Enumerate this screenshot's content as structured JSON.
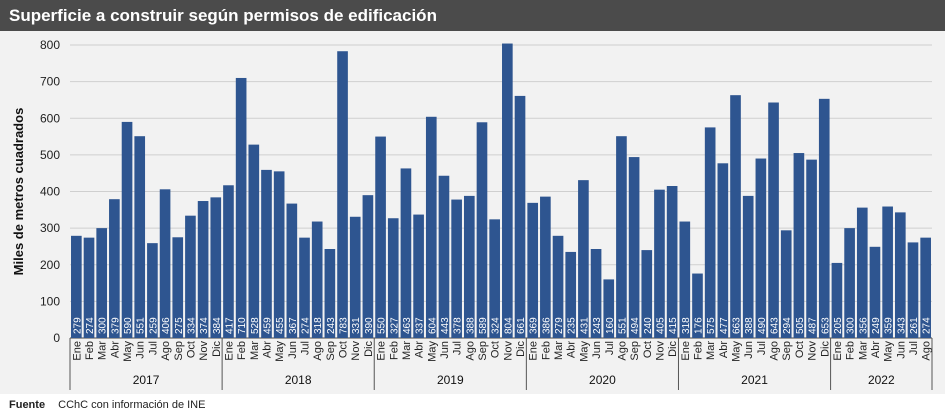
{
  "title": "Superficie a construir según permisos de edificación",
  "source": {
    "label": "Fuente",
    "text": "CChC con información de INE"
  },
  "colors": {
    "bar": "#2e5590",
    "title_bg": "#4b4b4b",
    "plot_bg": "#f2f2f2",
    "grid": "#cfcfcf",
    "value_label": "#ffffff"
  },
  "chart_data": {
    "type": "bar",
    "title": "Superficie a construir según permisos de edificación",
    "ylabel": "Miles de metros cuadrados",
    "xlabel": "",
    "ylim": [
      0,
      800
    ],
    "yticks": [
      0,
      100,
      200,
      300,
      400,
      500,
      600,
      700,
      800
    ],
    "grid": true,
    "years": [
      {
        "label": "2017",
        "months": [
          "Ene",
          "Feb",
          "Mar",
          "Abr",
          "May",
          "Jun",
          "Jul",
          "Ago",
          "Sep",
          "Oct",
          "Nov",
          "Dic"
        ],
        "values": [
          279,
          274,
          300,
          379,
          590,
          551,
          259,
          406,
          275,
          334,
          374,
          384
        ]
      },
      {
        "label": "2018",
        "months": [
          "Ene",
          "Feb",
          "Mar",
          "Abr",
          "May",
          "Jun",
          "Jul",
          "Ago",
          "Sep",
          "Oct",
          "Nov",
          "Dic"
        ],
        "values": [
          417,
          710,
          528,
          459,
          455,
          367,
          274,
          318,
          243,
          783,
          331,
          390
        ]
      },
      {
        "label": "2019",
        "months": [
          "Ene",
          "Feb",
          "Mar",
          "Abr",
          "May",
          "Jun",
          "Jul",
          "Ago",
          "Sep",
          "Oct",
          "Nov",
          "Dic"
        ],
        "values": [
          550,
          327,
          463,
          337,
          604,
          443,
          378,
          388,
          589,
          324,
          804,
          661
        ]
      },
      {
        "label": "2020",
        "months": [
          "Ene",
          "Feb",
          "Mar",
          "Abr",
          "May",
          "Jun",
          "Jul",
          "Ago",
          "Sep",
          "Oct",
          "Nov",
          "Dic"
        ],
        "values": [
          369,
          386,
          279,
          235,
          431,
          243,
          160,
          551,
          494,
          240,
          405,
          415
        ]
      },
      {
        "label": "2021",
        "months": [
          "Ene",
          "Feb",
          "Mar",
          "Abr",
          "May",
          "Jun",
          "Jul",
          "Ago",
          "Sep",
          "Oct",
          "Nov",
          "Dic"
        ],
        "values": [
          318,
          176,
          575,
          477,
          663,
          388,
          490,
          643,
          294,
          505,
          487,
          653
        ]
      },
      {
        "label": "2022",
        "months": [
          "Ene",
          "Feb",
          "Mar",
          "Abr",
          "May",
          "Jun",
          "Jul",
          "Ago"
        ],
        "values": [
          205,
          300,
          356,
          249,
          359,
          343,
          261,
          274
        ]
      }
    ]
  }
}
